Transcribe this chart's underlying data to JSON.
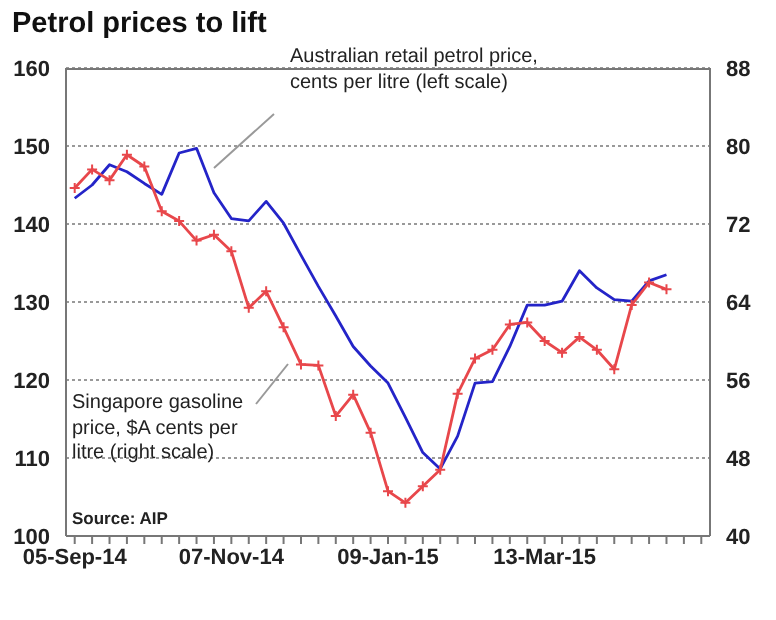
{
  "chart_data": {
    "type": "line",
    "title": "Petrol prices to lift",
    "annotations": [
      "Australian retail petrol price, cents per litre (left scale)",
      "Singapore gasoline price, $A cents per litre (right scale)",
      "Source: AIP"
    ],
    "categories": [
      "05-Sep-14",
      null,
      null,
      null,
      null,
      null,
      null,
      null,
      null,
      "07-Nov-14",
      null,
      null,
      null,
      null,
      null,
      null,
      null,
      null,
      "09-Jan-15",
      null,
      null,
      null,
      null,
      null,
      null,
      null,
      null,
      "13-Mar-15",
      null,
      null,
      null,
      null,
      null,
      null,
      null,
      null,
      null
    ],
    "series": [
      {
        "color": "#2424c8",
        "values": [
          143.3,
          145.0,
          147.6,
          146.7,
          145.2,
          143.8,
          149.1,
          149.7,
          144.0,
          140.7,
          140.4,
          142.9,
          140.1,
          136.0,
          132.0,
          128.2,
          124.3,
          121.8,
          119.6,
          115.2,
          110.7,
          108.6,
          112.8,
          119.6,
          119.8,
          124.3,
          129.6,
          129.6,
          130.1,
          134.0,
          131.8,
          130.3,
          130.1,
          132.7,
          133.5,
          null,
          null
        ]
      },
      {
        "color": "#e8474b",
        "axis": "y2",
        "marker": "cross",
        "values": [
          75.7,
          77.6,
          76.5,
          79.1,
          77.9,
          73.3,
          72.3,
          70.3,
          70.9,
          69.2,
          63.4,
          65.1,
          61.4,
          57.6,
          57.5,
          52.3,
          54.5,
          50.6,
          44.6,
          43.4,
          45.1,
          46.8,
          54.6,
          58.2,
          59.1,
          61.7,
          61.9,
          60.0,
          58.8,
          60.4,
          59.1,
          57.1,
          63.7,
          66.0,
          65.3,
          null,
          null
        ]
      }
    ],
    "ylim": [
      100,
      160
    ],
    "yticks": [
      100,
      110,
      120,
      130,
      140,
      150,
      160
    ],
    "y2lim": [
      40,
      88
    ],
    "y2ticks": [
      40,
      48,
      56,
      64,
      72,
      80,
      88
    ],
    "grid": "y",
    "line_style": "solid"
  }
}
